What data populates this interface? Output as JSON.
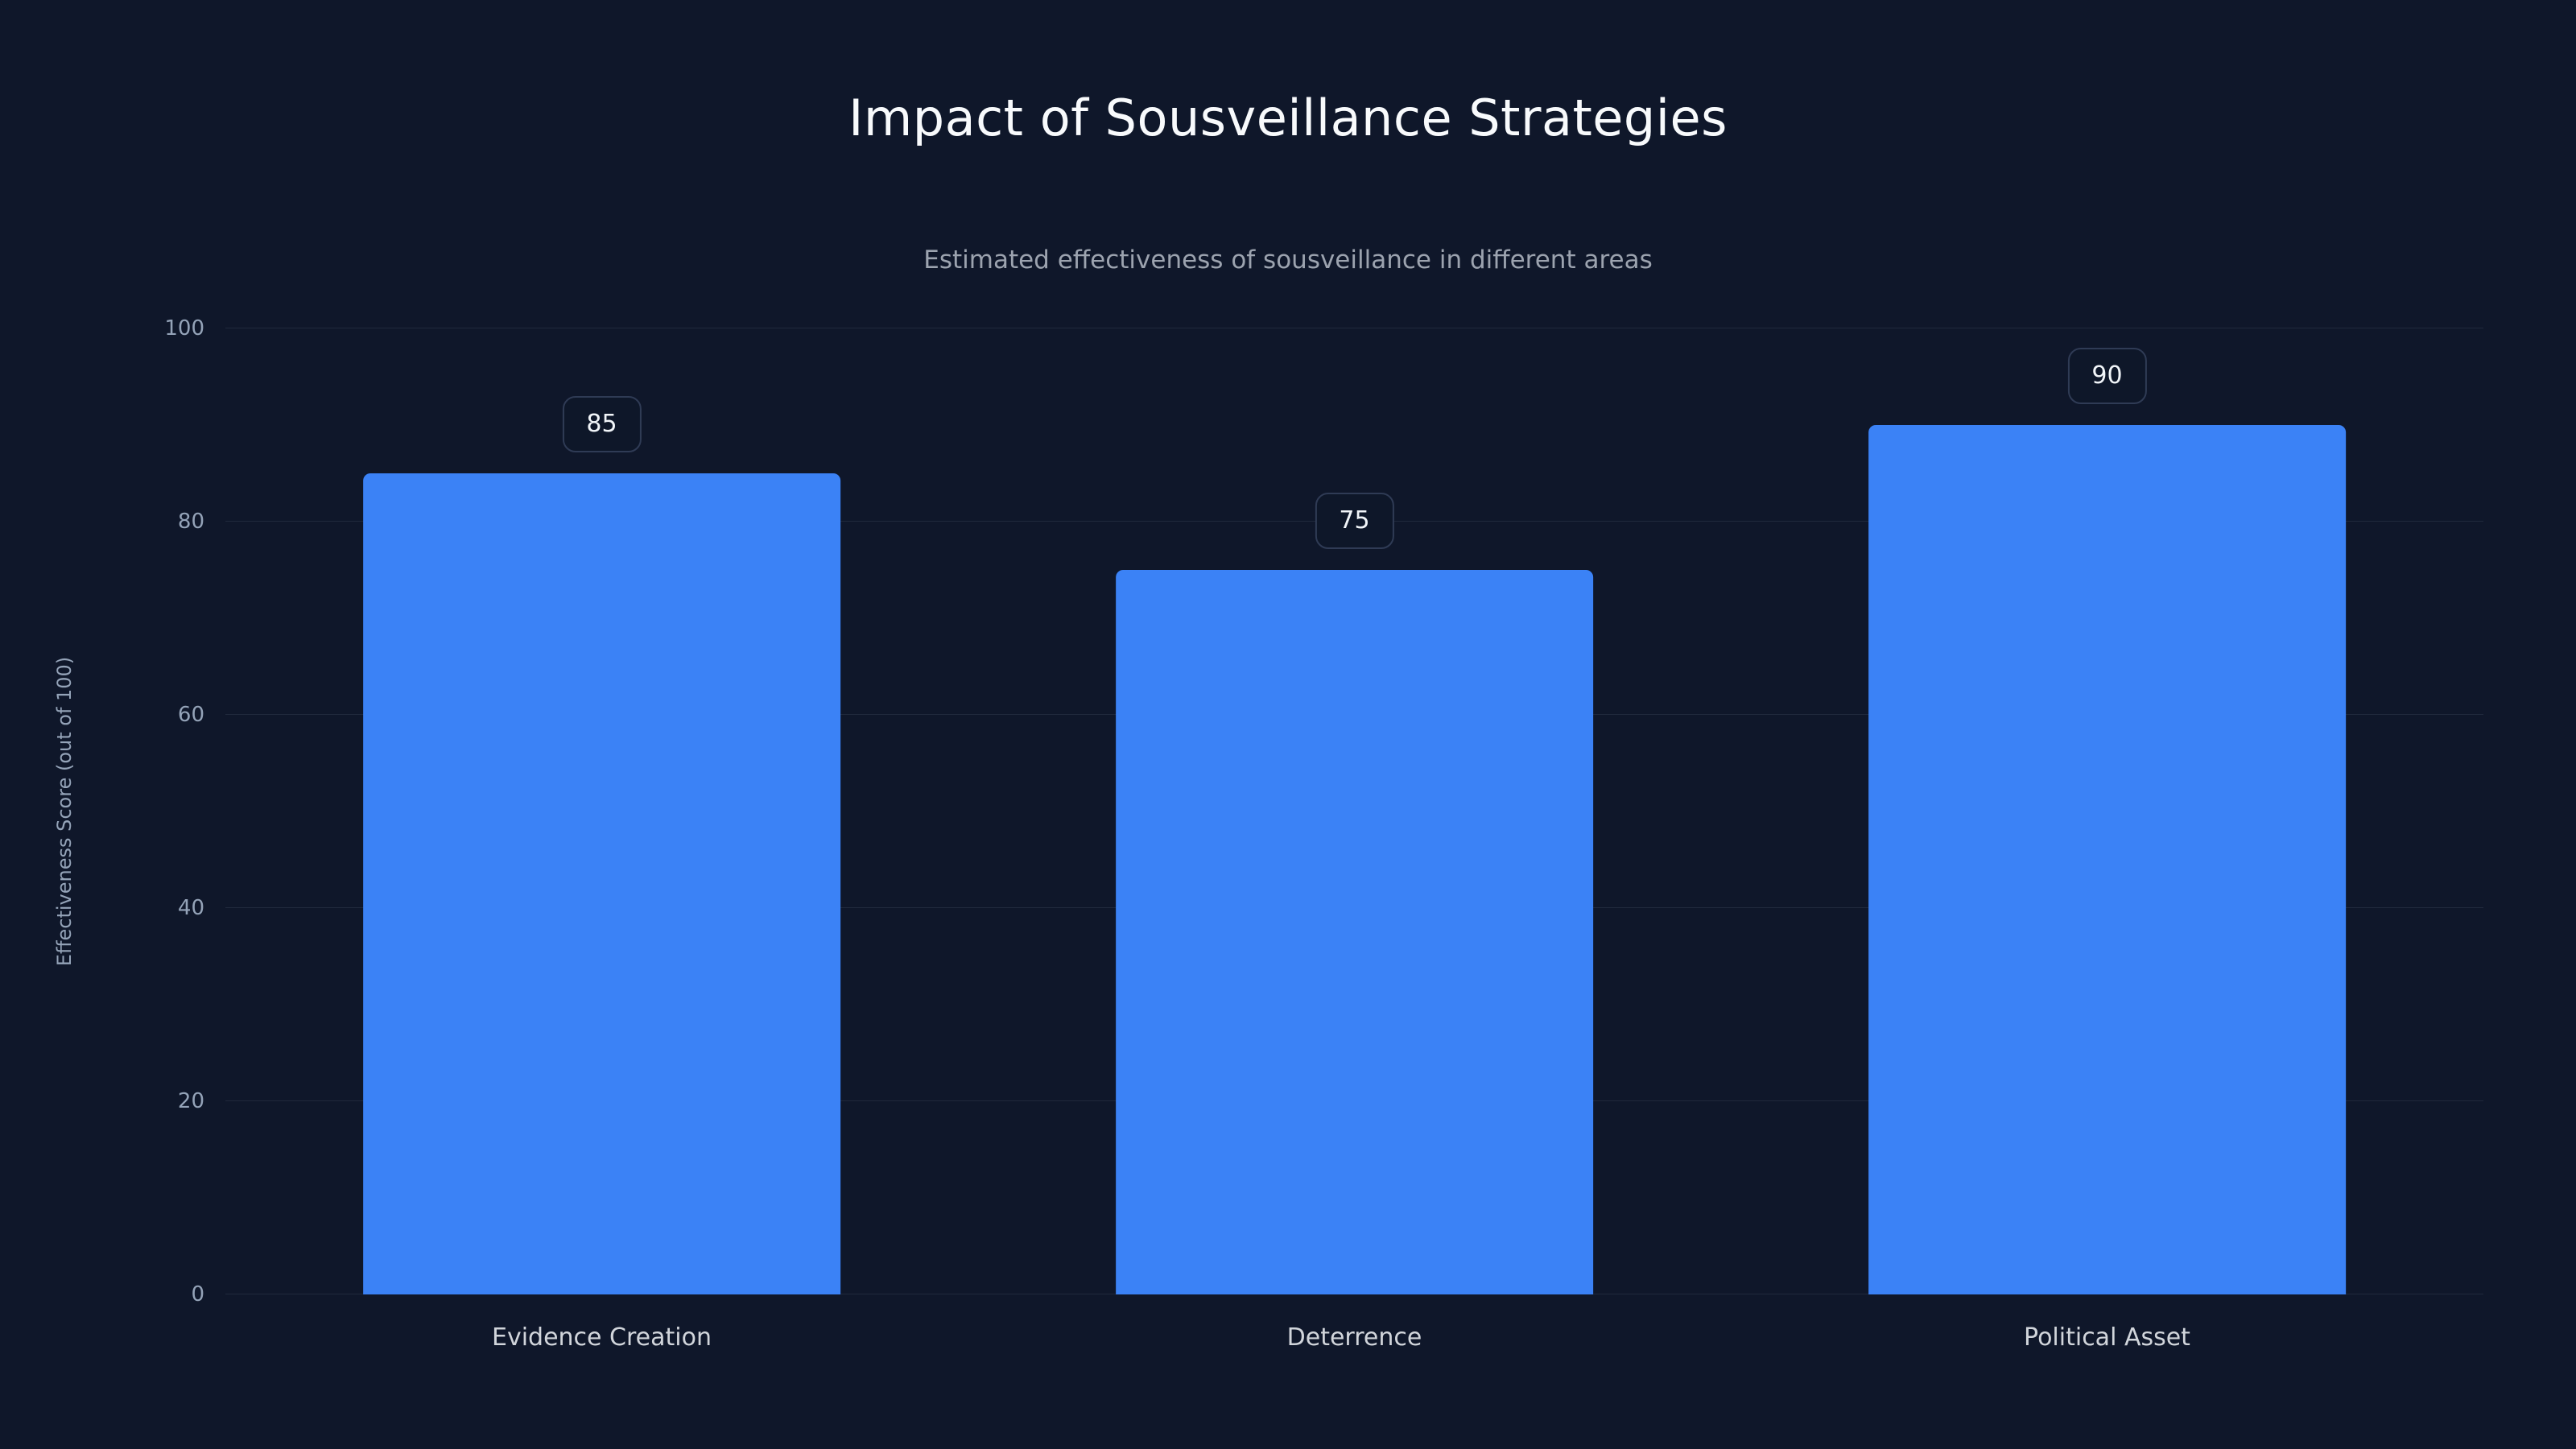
{
  "page": {
    "background_color": "#0f172a"
  },
  "header": {
    "title": "Impact of Sousveillance Strategies",
    "subtitle": "Estimated effectiveness of sousveillance in different areas"
  },
  "chart_data": {
    "type": "bar",
    "title": "Impact of Sousveillance Strategies",
    "subtitle": "Estimated effectiveness of sousveillance in different areas",
    "categories": [
      "Evidence Creation",
      "Deterrence",
      "Political Asset"
    ],
    "values": [
      85,
      75,
      90
    ],
    "value_labels": [
      "85",
      "75",
      "90"
    ],
    "xlabel": "",
    "ylabel": "Effectiveness Score (out of 100)",
    "ylim": [
      0,
      100
    ],
    "yticks": [
      0,
      20,
      40,
      60,
      80,
      100
    ],
    "grid": true,
    "legend": false,
    "bar_color": "#3b82f6",
    "colors": {
      "background": "#0f172a",
      "bar": "#3b82f6",
      "title_text": "#f8fafc",
      "subtitle_text": "#9ca3af",
      "tick_text": "#94a3b8",
      "category_text": "#d1d5db",
      "gridline": "rgba(148,163,184,0.13)",
      "badge_border": "#2f3b55",
      "badge_background": "#0e1729"
    }
  }
}
